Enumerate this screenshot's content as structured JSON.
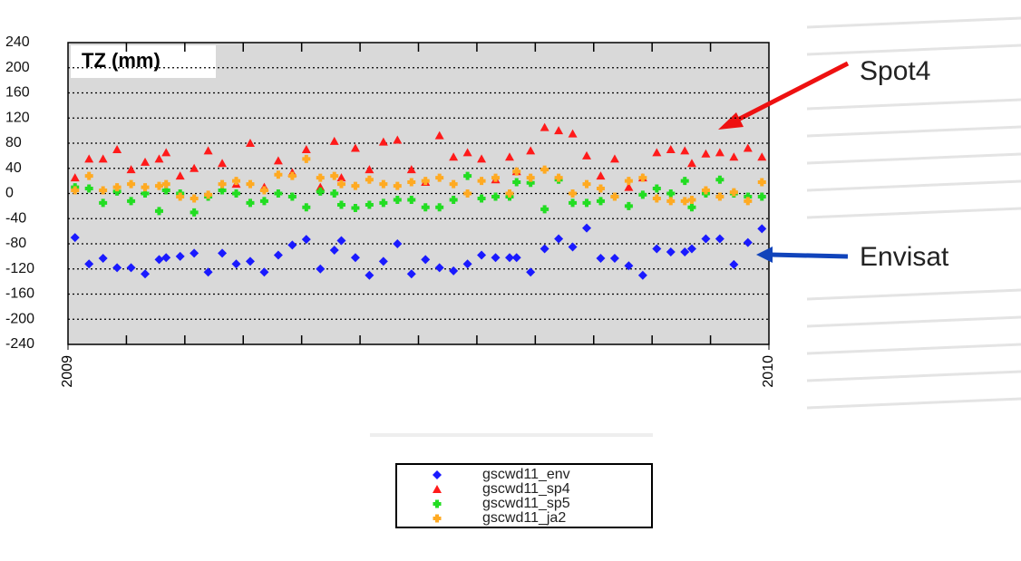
{
  "chart_data": {
    "type": "scatter",
    "title": "TZ (mm)",
    "x": [
      2009.01,
      2009.03,
      2009.05,
      2009.07,
      2009.09,
      2009.11,
      2009.13,
      2009.14,
      2009.16,
      2009.18,
      2009.2,
      2009.22,
      2009.24,
      2009.26,
      2009.28,
      2009.3,
      2009.32,
      2009.34,
      2009.36,
      2009.38,
      2009.39,
      2009.41,
      2009.43,
      2009.45,
      2009.47,
      2009.49,
      2009.51,
      2009.53,
      2009.55,
      2009.57,
      2009.59,
      2009.61,
      2009.63,
      2009.64,
      2009.66,
      2009.68,
      2009.7,
      2009.72,
      2009.74,
      2009.76,
      2009.78,
      2009.8,
      2009.82,
      2009.84,
      2009.86,
      2009.88,
      2009.89,
      2009.91,
      2009.93,
      2009.95,
      2009.97,
      2009.99
    ],
    "series": [
      {
        "name": "gscwd11_env",
        "color": "#1a1aff",
        "marker": "diamond",
        "values": [
          -70,
          -112,
          -103,
          -118,
          -118,
          -128,
          -105,
          -102,
          -100,
          -95,
          -125,
          -95,
          -112,
          -108,
          -125,
          -98,
          -82,
          -73,
          -120,
          -90,
          -75,
          -102,
          -130,
          -108,
          -80,
          -128,
          -105,
          -118,
          -123,
          -112,
          -98,
          -102,
          -102,
          -102,
          -125,
          -88,
          -72,
          -85,
          -55,
          -103,
          -103,
          -115,
          -130,
          -88,
          -93,
          -93,
          -88,
          -72,
          -72,
          -113,
          -78,
          -56
        ]
      },
      {
        "name": "gscwd11_sp4",
        "color": "#ff1a1a",
        "marker": "triangle",
        "values": [
          25,
          55,
          55,
          70,
          38,
          50,
          55,
          65,
          28,
          40,
          68,
          48,
          15,
          80,
          10,
          52,
          33,
          70,
          10,
          83,
          25,
          72,
          38,
          82,
          85,
          38,
          18,
          92,
          58,
          65,
          55,
          22,
          58,
          35,
          68,
          105,
          100,
          95,
          60,
          28,
          55,
          10,
          25,
          65,
          70,
          68,
          48,
          63,
          65,
          58,
          72,
          58
        ]
      },
      {
        "name": "gscwd11_sp5",
        "color": "#22dd22",
        "marker": "plus",
        "values": [
          10,
          8,
          -15,
          3,
          -12,
          0,
          -28,
          5,
          0,
          -30,
          -5,
          5,
          0,
          -15,
          -12,
          0,
          -5,
          -22,
          3,
          0,
          -18,
          -23,
          -18,
          -15,
          -10,
          -10,
          -22,
          -22,
          -10,
          28,
          -8,
          -5,
          -5,
          18,
          17,
          -25,
          22,
          -15,
          -15,
          -12,
          -5,
          -20,
          -2,
          8,
          0,
          20,
          -22,
          0,
          22,
          0,
          -5,
          -5
        ]
      },
      {
        "name": "gscwd11_ja2",
        "color": "#ffaa22",
        "marker": "plus",
        "values": [
          5,
          28,
          5,
          10,
          15,
          10,
          12,
          15,
          -5,
          -8,
          -2,
          15,
          20,
          15,
          5,
          30,
          28,
          55,
          25,
          28,
          15,
          12,
          22,
          15,
          12,
          18,
          20,
          25,
          15,
          0,
          20,
          25,
          0,
          35,
          25,
          38,
          25,
          0,
          15,
          8,
          -5,
          20,
          25,
          -8,
          -12,
          -12,
          -10,
          5,
          -5,
          2,
          -12,
          18
        ]
      }
    ],
    "xlim": [
      2009,
      2010
    ],
    "xticks": [
      2009,
      2010
    ],
    "ylim": [
      -240,
      240
    ],
    "yticks": [
      -240,
      -200,
      -160,
      -120,
      -80,
      -40,
      0,
      40,
      80,
      120,
      160,
      200,
      240
    ],
    "grid": true,
    "annotations": [
      "Spot4",
      "Envisat"
    ]
  }
}
